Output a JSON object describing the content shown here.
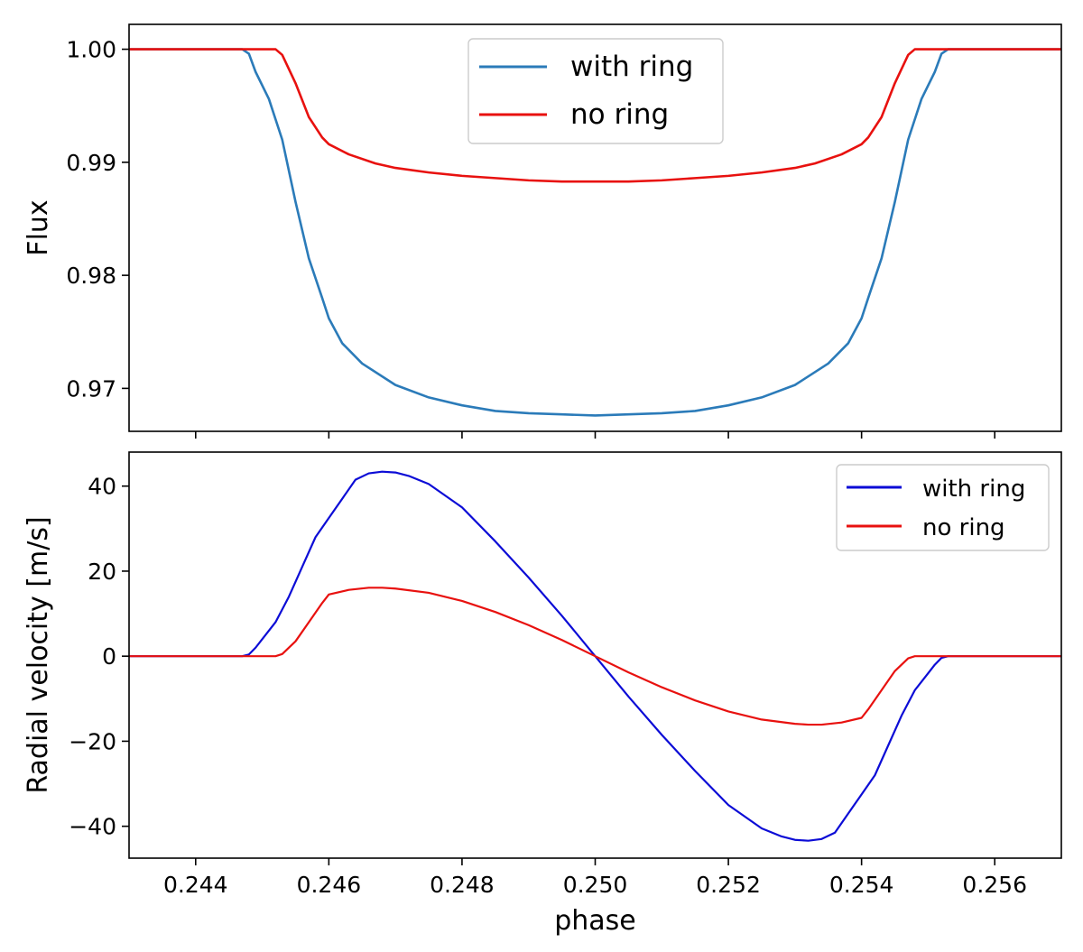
{
  "chart_data": [
    {
      "type": "line",
      "title": "",
      "xlabel": "",
      "ylabel": "Flux",
      "xlim": [
        0.243,
        0.257
      ],
      "ylim": [
        0.9662,
        1.0022
      ],
      "x_ticks": [
        0.244,
        0.246,
        0.248,
        0.25,
        0.252,
        0.254,
        0.256
      ],
      "x_tick_labels_visible": false,
      "y_ticks": [
        0.97,
        0.98,
        0.99,
        1.0
      ],
      "y_tick_labels": [
        "0.97",
        "0.98",
        "0.99",
        "1.00"
      ],
      "grid": false,
      "legend_position": "top-center",
      "series": [
        {
          "name": "with ring",
          "color": "#2b7bb9",
          "points": [
            [
              0.243,
              1.0
            ],
            [
              0.2447,
              1.0
            ],
            [
              0.2448,
              0.9996
            ],
            [
              0.2449,
              0.998
            ],
            [
              0.2451,
              0.9956
            ],
            [
              0.2453,
              0.992
            ],
            [
              0.2455,
              0.9865
            ],
            [
              0.2457,
              0.9815
            ],
            [
              0.2459,
              0.978
            ],
            [
              0.246,
              0.9762
            ],
            [
              0.2462,
              0.974
            ],
            [
              0.2465,
              0.9722
            ],
            [
              0.247,
              0.9703
            ],
            [
              0.2475,
              0.9692
            ],
            [
              0.248,
              0.9685
            ],
            [
              0.2485,
              0.968
            ],
            [
              0.249,
              0.9678
            ],
            [
              0.2495,
              0.9677
            ],
            [
              0.25,
              0.9676
            ],
            [
              0.2505,
              0.9677
            ],
            [
              0.251,
              0.9678
            ],
            [
              0.2515,
              0.968
            ],
            [
              0.252,
              0.9685
            ],
            [
              0.2525,
              0.9692
            ],
            [
              0.253,
              0.9703
            ],
            [
              0.2535,
              0.9722
            ],
            [
              0.2538,
              0.974
            ],
            [
              0.254,
              0.9762
            ],
            [
              0.2541,
              0.978
            ],
            [
              0.2543,
              0.9815
            ],
            [
              0.2545,
              0.9865
            ],
            [
              0.2547,
              0.992
            ],
            [
              0.2549,
              0.9956
            ],
            [
              0.2551,
              0.998
            ],
            [
              0.2552,
              0.9996
            ],
            [
              0.2553,
              1.0
            ],
            [
              0.257,
              1.0
            ]
          ]
        },
        {
          "name": "no ring",
          "color": "#e8110f",
          "points": [
            [
              0.243,
              1.0
            ],
            [
              0.2452,
              1.0
            ],
            [
              0.2453,
              0.9995
            ],
            [
              0.2455,
              0.997
            ],
            [
              0.2457,
              0.994
            ],
            [
              0.2459,
              0.9922
            ],
            [
              0.246,
              0.9916
            ],
            [
              0.2463,
              0.9907
            ],
            [
              0.2467,
              0.9899
            ],
            [
              0.247,
              0.9895
            ],
            [
              0.2475,
              0.9891
            ],
            [
              0.248,
              0.9888
            ],
            [
              0.2485,
              0.9886
            ],
            [
              0.249,
              0.9884
            ],
            [
              0.2495,
              0.9883
            ],
            [
              0.25,
              0.9883
            ],
            [
              0.2505,
              0.9883
            ],
            [
              0.251,
              0.9884
            ],
            [
              0.2515,
              0.9886
            ],
            [
              0.252,
              0.9888
            ],
            [
              0.2525,
              0.9891
            ],
            [
              0.253,
              0.9895
            ],
            [
              0.2533,
              0.9899
            ],
            [
              0.2537,
              0.9907
            ],
            [
              0.254,
              0.9916
            ],
            [
              0.2541,
              0.9922
            ],
            [
              0.2543,
              0.994
            ],
            [
              0.2545,
              0.997
            ],
            [
              0.2547,
              0.9995
            ],
            [
              0.2548,
              1.0
            ],
            [
              0.257,
              1.0
            ]
          ]
        }
      ]
    },
    {
      "type": "line",
      "title": "",
      "xlabel": "phase",
      "ylabel": "Radial velocity [m/s]",
      "xlim": [
        0.243,
        0.257
      ],
      "ylim": [
        -47.5,
        48
      ],
      "x_ticks": [
        0.244,
        0.246,
        0.248,
        0.25,
        0.252,
        0.254,
        0.256
      ],
      "x_tick_labels": [
        "0.244",
        "0.246",
        "0.248",
        "0.250",
        "0.252",
        "0.254",
        "0.256"
      ],
      "y_ticks": [
        -40,
        -20,
        0,
        20,
        40
      ],
      "y_tick_labels": [
        "−40",
        "−20",
        "0",
        "20",
        "40"
      ],
      "grid": false,
      "legend_position": "top-right",
      "series": [
        {
          "name": "with ring",
          "color": "#0c0cd6",
          "points": [
            [
              0.243,
              0.0
            ],
            [
              0.2447,
              0.0
            ],
            [
              0.2448,
              0.4
            ],
            [
              0.2449,
              2.0
            ],
            [
              0.245,
              4.0
            ],
            [
              0.2452,
              8.0
            ],
            [
              0.2454,
              14.0
            ],
            [
              0.2456,
              21.0
            ],
            [
              0.2458,
              28.0
            ],
            [
              0.246,
              32.5
            ],
            [
              0.2462,
              37.0
            ],
            [
              0.2464,
              41.5
            ],
            [
              0.2466,
              43.0
            ],
            [
              0.2468,
              43.4
            ],
            [
              0.247,
              43.2
            ],
            [
              0.2472,
              42.4
            ],
            [
              0.2475,
              40.5
            ],
            [
              0.248,
              35.0
            ],
            [
              0.2485,
              27.0
            ],
            [
              0.249,
              18.5
            ],
            [
              0.2495,
              9.5
            ],
            [
              0.25,
              0.0
            ],
            [
              0.2505,
              -9.5
            ],
            [
              0.251,
              -18.5
            ],
            [
              0.2515,
              -27.0
            ],
            [
              0.252,
              -35.0
            ],
            [
              0.2525,
              -40.5
            ],
            [
              0.2528,
              -42.4
            ],
            [
              0.253,
              -43.2
            ],
            [
              0.2532,
              -43.4
            ],
            [
              0.2534,
              -43.0
            ],
            [
              0.2536,
              -41.5
            ],
            [
              0.2538,
              -37.0
            ],
            [
              0.254,
              -32.5
            ],
            [
              0.2542,
              -28.0
            ],
            [
              0.2544,
              -21.0
            ],
            [
              0.2546,
              -14.0
            ],
            [
              0.2548,
              -8.0
            ],
            [
              0.255,
              -4.0
            ],
            [
              0.2551,
              -2.0
            ],
            [
              0.2552,
              -0.4
            ],
            [
              0.2553,
              0.0
            ],
            [
              0.257,
              0.0
            ]
          ]
        },
        {
          "name": "no ring",
          "color": "#e8110f",
          "points": [
            [
              0.243,
              0.0
            ],
            [
              0.2452,
              0.0
            ],
            [
              0.2453,
              0.5
            ],
            [
              0.2455,
              3.5
            ],
            [
              0.2457,
              8.0
            ],
            [
              0.2459,
              12.5
            ],
            [
              0.246,
              14.5
            ],
            [
              0.2463,
              15.6
            ],
            [
              0.2466,
              16.1
            ],
            [
              0.2468,
              16.1
            ],
            [
              0.247,
              15.9
            ],
            [
              0.2475,
              14.9
            ],
            [
              0.248,
              13.0
            ],
            [
              0.2485,
              10.4
            ],
            [
              0.249,
              7.3
            ],
            [
              0.2495,
              3.8
            ],
            [
              0.25,
              0.0
            ],
            [
              0.2505,
              -3.8
            ],
            [
              0.251,
              -7.3
            ],
            [
              0.2515,
              -10.4
            ],
            [
              0.252,
              -13.0
            ],
            [
              0.2525,
              -14.9
            ],
            [
              0.253,
              -15.9
            ],
            [
              0.2532,
              -16.1
            ],
            [
              0.2534,
              -16.1
            ],
            [
              0.2537,
              -15.6
            ],
            [
              0.254,
              -14.5
            ],
            [
              0.2541,
              -12.5
            ],
            [
              0.2543,
              -8.0
            ],
            [
              0.2545,
              -3.5
            ],
            [
              0.2547,
              -0.5
            ],
            [
              0.2548,
              0.0
            ],
            [
              0.257,
              0.0
            ]
          ]
        }
      ]
    }
  ]
}
